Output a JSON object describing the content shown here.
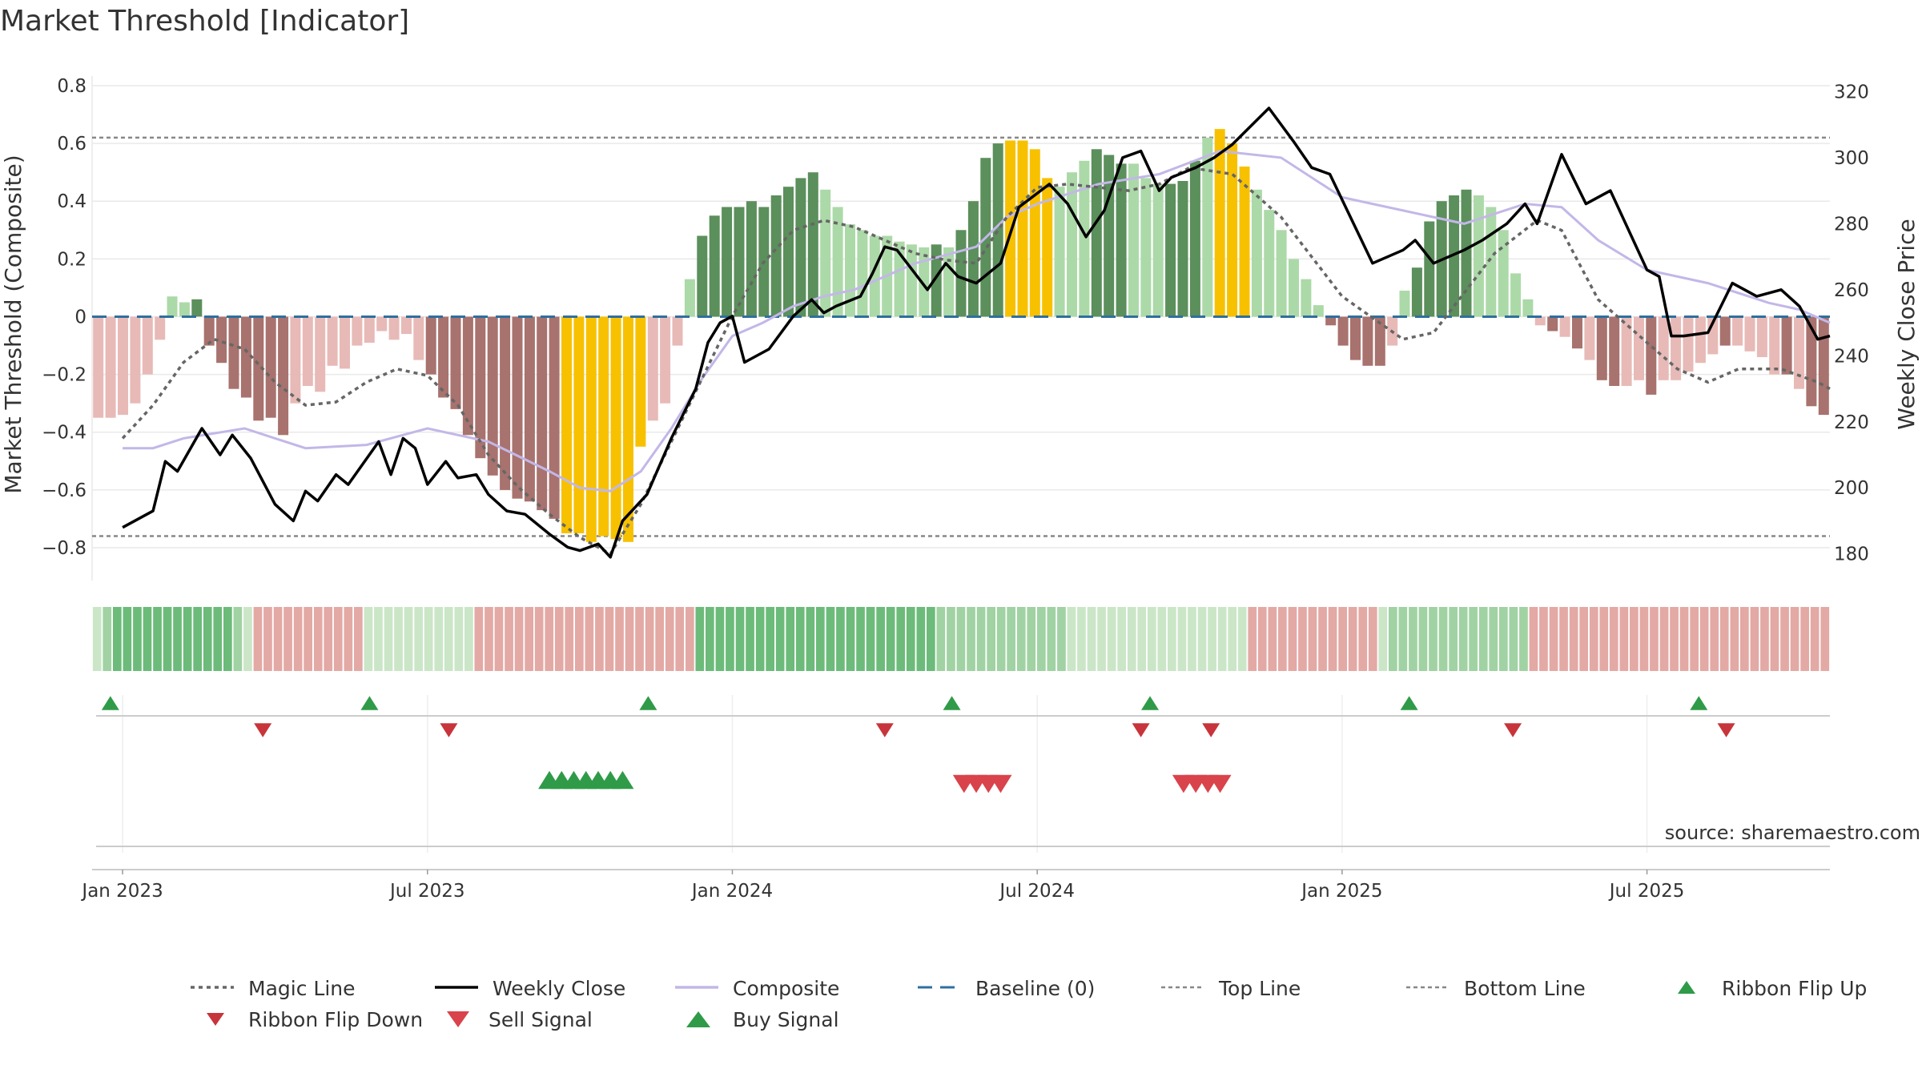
{
  "title": "Market Threshold [Indicator]",
  "source": "source: sharemaestro.com",
  "colors": {
    "pos_dark": "#5b8f5b",
    "pos_light": "#acd9a8",
    "neg_dark": "#a8726e",
    "neg_light": "#e7bab7",
    "extreme": "#f7c100",
    "close": "#000000",
    "composite": "#c3b7e8",
    "magic": "#666666",
    "baseline": "#2f6f9f",
    "threshold": "#888888",
    "buy": "#2f9b48",
    "sell": "#d9434c",
    "flip_down": "#c8343b",
    "grid": "#e9e9e9"
  },
  "chart_data": {
    "type": "bar",
    "x_range": [
      2022.95,
      2025.8
    ],
    "left_axis": {
      "label": "Market Threshold (Composite)",
      "range": [
        -0.85,
        0.8
      ],
      "ticks": [
        {
          "value": 0.8,
          "label": "0.8"
        },
        {
          "value": 0.6,
          "label": "0.6"
        },
        {
          "value": 0.4,
          "label": "0.4"
        },
        {
          "value": 0.2,
          "label": "0.2"
        },
        {
          "value": 0.0,
          "label": "0"
        },
        {
          "value": -0.2,
          "label": "−0.2"
        },
        {
          "value": -0.4,
          "label": "−0.4"
        },
        {
          "value": -0.6,
          "label": "−0.6"
        },
        {
          "value": -0.8,
          "label": "−0.8"
        }
      ]
    },
    "right_axis": {
      "label": "Weekly Close Price",
      "range": [
        177.5,
        321.8
      ],
      "ticks": [
        {
          "value": 320,
          "label": "320"
        },
        {
          "value": 300,
          "label": "300"
        },
        {
          "value": 280,
          "label": "280"
        },
        {
          "value": 260,
          "label": "260"
        },
        {
          "value": 240,
          "label": "240"
        },
        {
          "value": 220,
          "label": "220"
        },
        {
          "value": 200,
          "label": "200"
        },
        {
          "value": 180,
          "label": "180"
        }
      ]
    },
    "x_ticks": [
      {
        "value": 2023.0,
        "label": "Jan 2023"
      },
      {
        "value": 2023.5,
        "label": "Jul 2023"
      },
      {
        "value": 2024.0,
        "label": "Jan 2024"
      },
      {
        "value": 2024.5,
        "label": "Jul 2024"
      },
      {
        "value": 2025.0,
        "label": "Jan 2025"
      },
      {
        "value": 2025.5,
        "label": "Jul 2025"
      }
    ],
    "top_line": 0.62,
    "bottom_line": -0.76,
    "baseline": 0,
    "bars_segments": [
      [
        -0.35,
        -0.35,
        -0.34,
        -0.3,
        -0.2,
        -0.08,
        0.07,
        0.05,
        0.06
      ],
      [
        -0.1,
        -0.16,
        -0.25,
        -0.28,
        -0.36,
        -0.35,
        -0.41,
        -0.3,
        -0.24,
        -0.26,
        -0.17,
        -0.18,
        -0.1,
        -0.09,
        -0.05,
        -0.08,
        -0.06,
        -0.15
      ],
      [
        -0.2,
        -0.28,
        -0.32,
        -0.41,
        -0.49,
        -0.55,
        -0.6,
        -0.63,
        -0.64,
        -0.67,
        -0.7,
        -0.75,
        -0.75,
        -0.78,
        -0.76,
        -0.77,
        -0.78,
        -0.45,
        -0.36,
        -0.3,
        -0.1
      ],
      [
        0.13,
        0.28,
        0.35,
        0.38,
        0.38,
        0.4,
        0.38,
        0.42,
        0.45,
        0.48,
        0.5,
        0.44,
        0.38,
        0.32,
        0.3,
        0.28,
        0.28,
        0.26,
        0.25,
        0.24,
        0.25,
        0.24,
        0.3,
        0.4,
        0.55,
        0.6,
        0.61,
        0.61,
        0.58,
        0.48,
        0.45,
        0.5,
        0.54,
        0.58,
        0.56,
        0.53,
        0.53,
        0.48,
        0.46,
        0.46,
        0.47,
        0.54,
        0.62,
        0.65,
        0.6,
        0.52,
        0.44,
        0.37,
        0.3,
        0.2,
        0.13,
        0.04
      ],
      [
        -0.03,
        -0.1,
        -0.15,
        -0.17,
        -0.17,
        -0.1
      ],
      [
        0.09,
        0.17,
        0.33,
        0.4,
        0.42,
        0.44,
        0.42,
        0.38,
        0.3,
        0.15,
        0.06
      ],
      [
        -0.03,
        -0.05,
        -0.07,
        -0.11,
        -0.15,
        -0.22,
        -0.24,
        -0.24,
        -0.22,
        -0.27,
        -0.22,
        -0.22,
        -0.19,
        -0.16,
        -0.13,
        -0.1,
        -0.1,
        -0.12,
        -0.14,
        -0.2,
        -0.2,
        -0.25,
        -0.31,
        -0.34
      ]
    ],
    "bar_color_codes_segments": [
      "LLLLLLLLD",
      "DDDDDDDLLLLLLLLLLL",
      "DDDDDDDDDDDYYYYYYYLLL",
      "LDDDDDDDDDDLLLLLLLLLDLDDDDYYYYLLLDDDLLLDDDLYYYLLLLLL",
      "DDDDDL",
      "LDDDDDLLLLL",
      "LDLDLDDLLDLLLLLDLLLLDLDD"
    ],
    "weekly_close": [
      [
        2023.0,
        188
      ],
      [
        2023.05,
        193
      ],
      [
        2023.07,
        208
      ],
      [
        2023.09,
        205
      ],
      [
        2023.13,
        218
      ],
      [
        2023.16,
        210
      ],
      [
        2023.18,
        216
      ],
      [
        2023.21,
        209
      ],
      [
        2023.25,
        195
      ],
      [
        2023.28,
        190
      ],
      [
        2023.3,
        199
      ],
      [
        2023.32,
        196
      ],
      [
        2023.35,
        204
      ],
      [
        2023.37,
        201
      ],
      [
        2023.42,
        214
      ],
      [
        2023.44,
        204
      ],
      [
        2023.46,
        215
      ],
      [
        2023.48,
        212
      ],
      [
        2023.5,
        201
      ],
      [
        2023.53,
        208
      ],
      [
        2023.55,
        203
      ],
      [
        2023.58,
        204
      ],
      [
        2023.6,
        198
      ],
      [
        2023.63,
        193
      ],
      [
        2023.66,
        192
      ],
      [
        2023.7,
        186
      ],
      [
        2023.73,
        182
      ],
      [
        2023.75,
        181
      ],
      [
        2023.78,
        183
      ],
      [
        2023.8,
        179
      ],
      [
        2023.82,
        190
      ],
      [
        2023.86,
        198
      ],
      [
        2023.9,
        215
      ],
      [
        2023.94,
        230
      ],
      [
        2023.96,
        244
      ],
      [
        2023.98,
        250
      ],
      [
        2024.0,
        252
      ],
      [
        2024.02,
        238
      ],
      [
        2024.06,
        242
      ],
      [
        2024.1,
        252
      ],
      [
        2024.13,
        257
      ],
      [
        2024.15,
        253
      ],
      [
        2024.17,
        255
      ],
      [
        2024.21,
        258
      ],
      [
        2024.23,
        265
      ],
      [
        2024.25,
        273
      ],
      [
        2024.27,
        272
      ],
      [
        2024.32,
        260
      ],
      [
        2024.35,
        268
      ],
      [
        2024.37,
        264
      ],
      [
        2024.4,
        262
      ],
      [
        2024.44,
        268
      ],
      [
        2024.47,
        285
      ],
      [
        2024.52,
        292
      ],
      [
        2024.55,
        286
      ],
      [
        2024.58,
        276
      ],
      [
        2024.61,
        284
      ],
      [
        2024.64,
        300
      ],
      [
        2024.67,
        302
      ],
      [
        2024.7,
        290
      ],
      [
        2024.72,
        294
      ],
      [
        2024.76,
        297
      ],
      [
        2024.79,
        300
      ],
      [
        2024.82,
        304
      ],
      [
        2024.88,
        315
      ],
      [
        2024.92,
        305
      ],
      [
        2024.95,
        297
      ],
      [
        2024.98,
        295
      ],
      [
        2025.05,
        268
      ],
      [
        2025.1,
        272
      ],
      [
        2025.12,
        275
      ],
      [
        2025.15,
        268
      ],
      [
        2025.2,
        272
      ],
      [
        2025.23,
        275
      ],
      [
        2025.27,
        280
      ],
      [
        2025.3,
        286
      ],
      [
        2025.32,
        280
      ],
      [
        2025.36,
        301
      ],
      [
        2025.4,
        286
      ],
      [
        2025.44,
        290
      ],
      [
        2025.5,
        266
      ],
      [
        2025.52,
        264
      ],
      [
        2025.54,
        246
      ],
      [
        2025.56,
        246
      ],
      [
        2025.6,
        247
      ],
      [
        2025.64,
        262
      ],
      [
        2025.68,
        258
      ],
      [
        2025.72,
        260
      ],
      [
        2025.75,
        255
      ],
      [
        2025.78,
        245
      ],
      [
        2025.8,
        246
      ]
    ],
    "composite": [
      [
        2023.0,
        212
      ],
      [
        2023.05,
        212
      ],
      [
        2023.1,
        215
      ],
      [
        2023.2,
        218
      ],
      [
        2023.25,
        215
      ],
      [
        2023.3,
        212
      ],
      [
        2023.4,
        213
      ],
      [
        2023.5,
        218
      ],
      [
        2023.6,
        214
      ],
      [
        2023.7,
        205
      ],
      [
        2023.75,
        200
      ],
      [
        2023.8,
        199
      ],
      [
        2023.85,
        205
      ],
      [
        2023.9,
        218
      ],
      [
        2023.95,
        233
      ],
      [
        2024.0,
        246
      ],
      [
        2024.05,
        250
      ],
      [
        2024.1,
        255
      ],
      [
        2024.15,
        258
      ],
      [
        2024.2,
        260
      ],
      [
        2024.3,
        268
      ],
      [
        2024.4,
        273
      ],
      [
        2024.45,
        282
      ],
      [
        2024.5,
        286
      ],
      [
        2024.6,
        292
      ],
      [
        2024.7,
        295
      ],
      [
        2024.8,
        302
      ],
      [
        2024.9,
        300
      ],
      [
        2025.0,
        288
      ],
      [
        2025.1,
        284
      ],
      [
        2025.2,
        280
      ],
      [
        2025.3,
        286
      ],
      [
        2025.36,
        285
      ],
      [
        2025.42,
        275
      ],
      [
        2025.5,
        266
      ],
      [
        2025.6,
        262
      ],
      [
        2025.7,
        256
      ],
      [
        2025.75,
        254
      ],
      [
        2025.8,
        250
      ]
    ],
    "magic": [
      [
        2023.0,
        215
      ],
      [
        2023.05,
        225
      ],
      [
        2023.1,
        238
      ],
      [
        2023.15,
        245
      ],
      [
        2023.2,
        242
      ],
      [
        2023.25,
        232
      ],
      [
        2023.3,
        225
      ],
      [
        2023.35,
        226
      ],
      [
        2023.4,
        232
      ],
      [
        2023.45,
        236
      ],
      [
        2023.5,
        234
      ],
      [
        2023.55,
        225
      ],
      [
        2023.6,
        210
      ],
      [
        2023.65,
        200
      ],
      [
        2023.7,
        192
      ],
      [
        2023.75,
        185
      ],
      [
        2023.8,
        180
      ],
      [
        2023.85,
        195
      ],
      [
        2024.0,
        252
      ],
      [
        2024.05,
        268
      ],
      [
        2024.1,
        278
      ],
      [
        2024.15,
        281
      ],
      [
        2024.2,
        279
      ],
      [
        2024.25,
        275
      ],
      [
        2024.3,
        271
      ],
      [
        2024.35,
        269
      ],
      [
        2024.4,
        268
      ],
      [
        2024.45,
        282
      ],
      [
        2024.5,
        291
      ],
      [
        2024.55,
        292
      ],
      [
        2024.6,
        291
      ],
      [
        2024.65,
        290
      ],
      [
        2024.7,
        292
      ],
      [
        2024.75,
        297
      ],
      [
        2024.82,
        295
      ],
      [
        2024.9,
        282
      ],
      [
        2025.0,
        258
      ],
      [
        2025.1,
        245
      ],
      [
        2025.15,
        247
      ],
      [
        2025.2,
        259
      ],
      [
        2025.25,
        271
      ],
      [
        2025.32,
        281
      ],
      [
        2025.36,
        278
      ],
      [
        2025.42,
        257
      ],
      [
        2025.5,
        244
      ],
      [
        2025.55,
        236
      ],
      [
        2025.6,
        232
      ],
      [
        2025.65,
        236
      ],
      [
        2025.72,
        236
      ],
      [
        2025.78,
        232
      ],
      [
        2025.8,
        230
      ]
    ],
    "ribbon_codes": "LMDDDDDDDDDDDDMLRRRRRRRRRRRLLLLLLLLLLLRRRRRRRRRRRRRRRRRRRRRRDDDDDDDDDDDDDDDDDDDDDDDDMMMMMMMMMMMMMLLLLLLLLLLLLLLLLLLRRRRRRRRRRRRRLMMMMMMMMMMMMMMRRRRRRRRRRRRRRRRRRRRRRRRRRRRRR",
    "ribbon_flip_up": [
      2022.98,
      2023.405,
      2023.862,
      2024.36,
      2024.685,
      2025.11,
      2025.585
    ],
    "ribbon_flip_down": [
      2023.23,
      2023.535,
      2024.25,
      2024.67,
      2024.785,
      2025.28,
      2025.63
    ],
    "buy_signals": [
      2023.7,
      2023.72,
      2023.74,
      2023.76,
      2023.78,
      2023.8,
      2023.82
    ],
    "sell_signals": [
      2024.38,
      2024.4,
      2024.42,
      2024.44,
      2024.74,
      2024.76,
      2024.78,
      2024.8
    ],
    "legend": [
      {
        "key": "magic",
        "label": "Magic Line"
      },
      {
        "key": "close",
        "label": "Weekly Close"
      },
      {
        "key": "composite",
        "label": "Composite"
      },
      {
        "key": "baseline",
        "label": "Baseline (0)"
      },
      {
        "key": "top",
        "label": "Top Line"
      },
      {
        "key": "bottom",
        "label": "Bottom Line"
      },
      {
        "key": "flipup",
        "label": "Ribbon Flip Up"
      },
      {
        "key": "flipdown",
        "label": "Ribbon Flip Down"
      },
      {
        "key": "sell",
        "label": "Sell Signal"
      },
      {
        "key": "buy",
        "label": "Buy Signal"
      }
    ]
  }
}
